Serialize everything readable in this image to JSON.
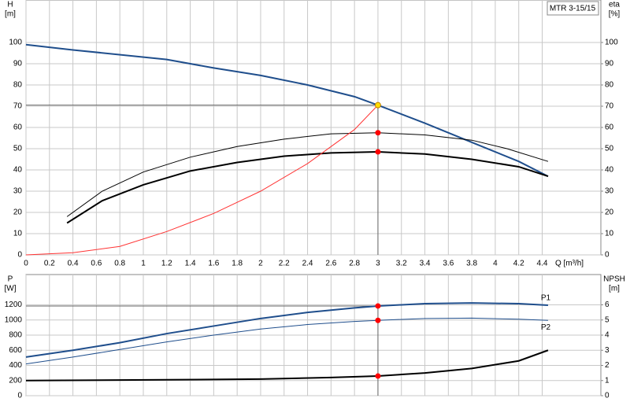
{
  "chart_data": [
    {
      "type": "line",
      "ylabel": "H",
      "yunit": "[m]",
      "y2label": "eta",
      "y2unit": "[%]",
      "xlabel": "Q [m³/h]",
      "model": "MTR 3-15/15",
      "xlim": [
        0,
        4.9
      ],
      "xticks": [
        0,
        0.2,
        0.4,
        0.6,
        0.8,
        1.0,
        1.2,
        1.4,
        1.6,
        1.8,
        2.0,
        2.2,
        2.4,
        2.6,
        2.8,
        3.0,
        3.2,
        3.4,
        3.6,
        3.8,
        4.0,
        4.2,
        4.4
      ],
      "ylim": [
        0,
        120
      ],
      "yticks": [
        0,
        10,
        20,
        30,
        40,
        50,
        60,
        70,
        80,
        90,
        100
      ],
      "y2lim": [
        0,
        120
      ],
      "y2ticks": [
        0,
        10,
        20,
        30,
        40,
        50,
        60,
        70,
        80,
        90,
        100
      ],
      "grid": true,
      "series": [
        {
          "color": "#1f4e8c",
          "width": 2,
          "x": [
            0,
            0.4,
            1.2,
            1.6,
            2.0,
            2.4,
            2.8,
            3.0,
            3.4,
            3.8,
            4.2,
            4.45
          ],
          "values": [
            99,
            96.5,
            92,
            88,
            84.5,
            80,
            74.5,
            70.5,
            62,
            53,
            44,
            37
          ]
        },
        {
          "color": "#000000",
          "width": 1,
          "axis": "y2",
          "x": [
            0.35,
            0.65,
            1.0,
            1.4,
            1.8,
            2.2,
            2.6,
            3.0,
            3.4,
            3.8,
            4.1,
            4.45
          ],
          "values": [
            18,
            30,
            39,
            46,
            51,
            54.5,
            57,
            57.5,
            56.5,
            54,
            50,
            44
          ]
        },
        {
          "color": "#000000",
          "width": 2,
          "axis": "y2",
          "x": [
            0.35,
            0.65,
            1.0,
            1.4,
            1.8,
            2.2,
            2.6,
            3.0,
            3.4,
            3.8,
            4.2,
            4.45
          ],
          "values": [
            15,
            25.5,
            33,
            39.5,
            43.5,
            46.5,
            48,
            48.5,
            47.5,
            45,
            41.5,
            37
          ]
        },
        {
          "color": "#ff3333",
          "width": 1,
          "x": [
            0,
            0.4,
            0.8,
            1.2,
            1.6,
            2.0,
            2.4,
            2.8,
            3.0
          ],
          "values": [
            0,
            1,
            4,
            11,
            19.5,
            30,
            43,
            59,
            70.5
          ]
        }
      ],
      "markers": [
        {
          "x": 3.0,
          "y": 70.5,
          "color": "#ffdd00"
        },
        {
          "x": 3.0,
          "y": 57.5,
          "color": "#ff0000"
        },
        {
          "x": 3.0,
          "y": 48.5,
          "color": "#ff0000"
        }
      ]
    },
    {
      "type": "line",
      "ylabel": "P",
      "yunit": "[W]",
      "y2label": "NPSH",
      "y2unit": "[m]",
      "xlim": [
        0,
        4.9
      ],
      "xticks": [
        0,
        0.2,
        0.4,
        0.6,
        0.8,
        1.0,
        1.2,
        1.4,
        1.6,
        1.8,
        2.0,
        2.2,
        2.4,
        2.6,
        2.8,
        3.0,
        3.2,
        3.4,
        3.6,
        3.8,
        4.0,
        4.2,
        4.4
      ],
      "ylim": [
        0,
        1600
      ],
      "yticks": [
        0,
        200,
        400,
        600,
        800,
        1000,
        1200
      ],
      "y2lim": [
        0,
        8
      ],
      "y2ticks": [
        0,
        1,
        2,
        3,
        4,
        5,
        6
      ],
      "grid": true,
      "series": [
        {
          "name": "P1",
          "color": "#1f4e8c",
          "width": 2,
          "x": [
            0,
            0.4,
            0.8,
            1.2,
            1.6,
            2.0,
            2.4,
            2.8,
            3.0,
            3.4,
            3.8,
            4.2,
            4.45
          ],
          "values": [
            510,
            600,
            700,
            820,
            920,
            1020,
            1100,
            1160,
            1185,
            1215,
            1225,
            1215,
            1195
          ]
        },
        {
          "name": "P2",
          "color": "#1f4e8c",
          "width": 1,
          "x": [
            0,
            0.4,
            0.8,
            1.2,
            1.6,
            2.0,
            2.4,
            2.8,
            3.0,
            3.4,
            3.8,
            4.2,
            4.45
          ],
          "values": [
            420,
            510,
            610,
            710,
            800,
            880,
            940,
            980,
            995,
            1020,
            1025,
            1010,
            995
          ]
        },
        {
          "color": "#000000",
          "width": 2,
          "axis": "y2",
          "x": [
            0,
            1.2,
            2.0,
            2.6,
            3.0,
            3.4,
            3.8,
            4.2,
            4.45
          ],
          "values": [
            1,
            1.05,
            1.1,
            1.2,
            1.3,
            1.5,
            1.8,
            2.3,
            3
          ]
        }
      ],
      "markers": [
        {
          "x": 3.0,
          "y": 1185,
          "color": "#ff0000"
        },
        {
          "x": 3.0,
          "y": 995,
          "color": "#ff0000"
        },
        {
          "x": 3.0,
          "y": 1.3,
          "color": "#ff0000",
          "axis": "y2"
        }
      ]
    }
  ]
}
